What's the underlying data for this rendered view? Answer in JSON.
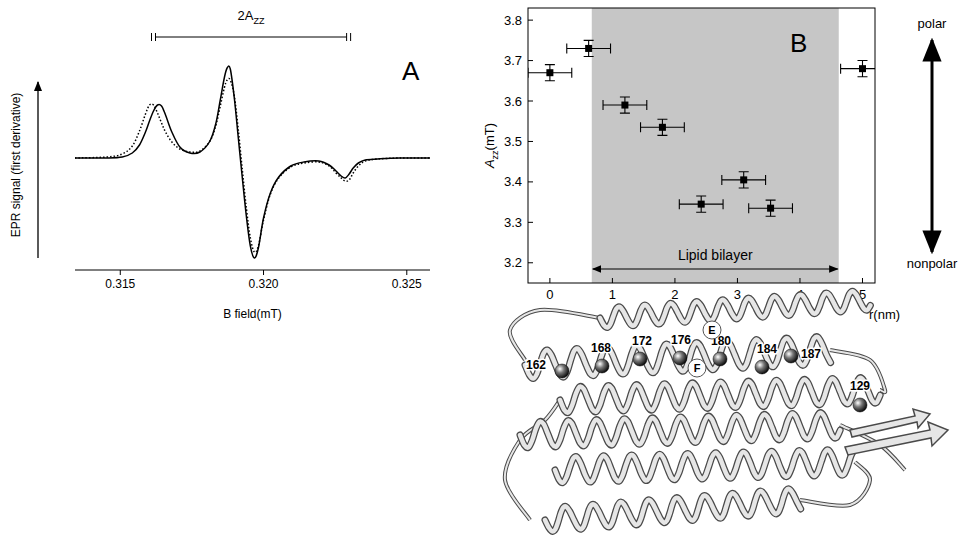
{
  "chart_data": [
    {
      "type": "line",
      "title": "A",
      "x_label": "B field(mT)",
      "y_label": "EPR signal (first derivative)",
      "x": [
        0.31342,
        0.31454,
        0.31507,
        0.31542,
        0.31567,
        0.31588,
        0.31602,
        0.31616,
        0.3163,
        0.31644,
        0.31658,
        0.3168,
        0.31708,
        0.31743,
        0.31778,
        0.31813,
        0.31834,
        0.31849,
        0.31863,
        0.31873,
        0.31884,
        0.31898,
        0.31912,
        0.31926,
        0.3194,
        0.31954,
        0.31968,
        0.31982,
        0.32,
        0.32024,
        0.32053,
        0.32095,
        0.32141,
        0.32193,
        0.32229,
        0.32253,
        0.32271,
        0.32285,
        0.32299,
        0.32313,
        0.32331,
        0.32355,
        0.32398,
        0.32475,
        0.32581
      ],
      "series": [
        {
          "color": "#000000",
          "line_style": "solid",
          "values": [
            0,
            0,
            0.01,
            0.05,
            0.13,
            0.26,
            0.37,
            0.47,
            0.53,
            0.52,
            0.43,
            0.26,
            0.11,
            0.05,
            0.06,
            0.17,
            0.35,
            0.58,
            0.8,
            0.9,
            0.89,
            0.6,
            0.2,
            -0.2,
            -0.58,
            -0.88,
            -1.0,
            -0.9,
            -0.6,
            -0.35,
            -0.19,
            -0.08,
            -0.04,
            -0.03,
            -0.07,
            -0.13,
            -0.18,
            -0.2,
            -0.16,
            -0.1,
            -0.05,
            -0.02,
            -0.01,
            0,
            0
          ]
        },
        {
          "color": "#000000",
          "line_style": "dotted",
          "values": [
            0,
            0.01,
            0.04,
            0.12,
            0.27,
            0.44,
            0.53,
            0.53,
            0.45,
            0.35,
            0.26,
            0.16,
            0.09,
            0.06,
            0.07,
            0.17,
            0.33,
            0.52,
            0.7,
            0.78,
            0.78,
            0.62,
            0.28,
            -0.12,
            -0.5,
            -0.8,
            -0.94,
            -0.88,
            -0.62,
            -0.36,
            -0.2,
            -0.09,
            -0.05,
            -0.04,
            -0.08,
            -0.15,
            -0.2,
            -0.23,
            -0.22,
            -0.15,
            -0.08,
            -0.03,
            -0.01,
            0,
            0
          ]
        }
      ],
      "xlim": [
        0.31342,
        0.32581
      ],
      "xticks": [
        0.315,
        {
          "value": 0.32,
          "label": "0.320"
        },
        0.325
      ],
      "ylim": [
        -1.12,
        1.18
      ],
      "tick_labels": "x",
      "annotations": [
        {
          "text": "2A",
          "subscript": "ZZ",
          "x": [
            0.31623,
            0.3229
          ]
        }
      ]
    },
    {
      "type": "scatter",
      "title": "B",
      "x_label": "r(nm)",
      "y_label": "A",
      "y_label_subscript": "zz",
      "y_label_suffix": "(mT)",
      "x": [
        0,
        0.62,
        1.2,
        1.8,
        2.42,
        3.1,
        3.53,
        5.0
      ],
      "xerr": [
        0.35,
        0.35,
        0.35,
        0.35,
        0.35,
        0.35,
        0.35,
        0.35
      ],
      "series": [
        {
          "color": "#000000",
          "marker": "square",
          "values": [
            3.67,
            3.73,
            3.59,
            3.535,
            3.345,
            3.405,
            3.335,
            3.68
          ],
          "yerr": [
            0.02,
            0.02,
            0.02,
            0.02,
            0.02,
            0.02,
            0.02,
            0.02
          ]
        }
      ],
      "xlim": [
        -0.35,
        5.2
      ],
      "ylim": [
        3.15,
        3.83
      ],
      "xticks": [
        0,
        1,
        2,
        3,
        4,
        5
      ],
      "yticks": [
        3.2,
        3.3,
        3.4,
        3.5,
        3.6,
        3.7,
        3.8
      ],
      "region": {
        "label": "Lipid bilayer",
        "x": [
          0.67,
          4.62
        ],
        "color": "#c6c6c6"
      },
      "annotations": [
        {
          "text": "polar"
        },
        {
          "text": "nonpolar"
        }
      ]
    }
  ],
  "structure": {
    "residues": [
      "162",
      "168",
      "172",
      "176",
      "180",
      "184",
      "187",
      "129"
    ],
    "helices": [
      "E",
      "F"
    ]
  }
}
